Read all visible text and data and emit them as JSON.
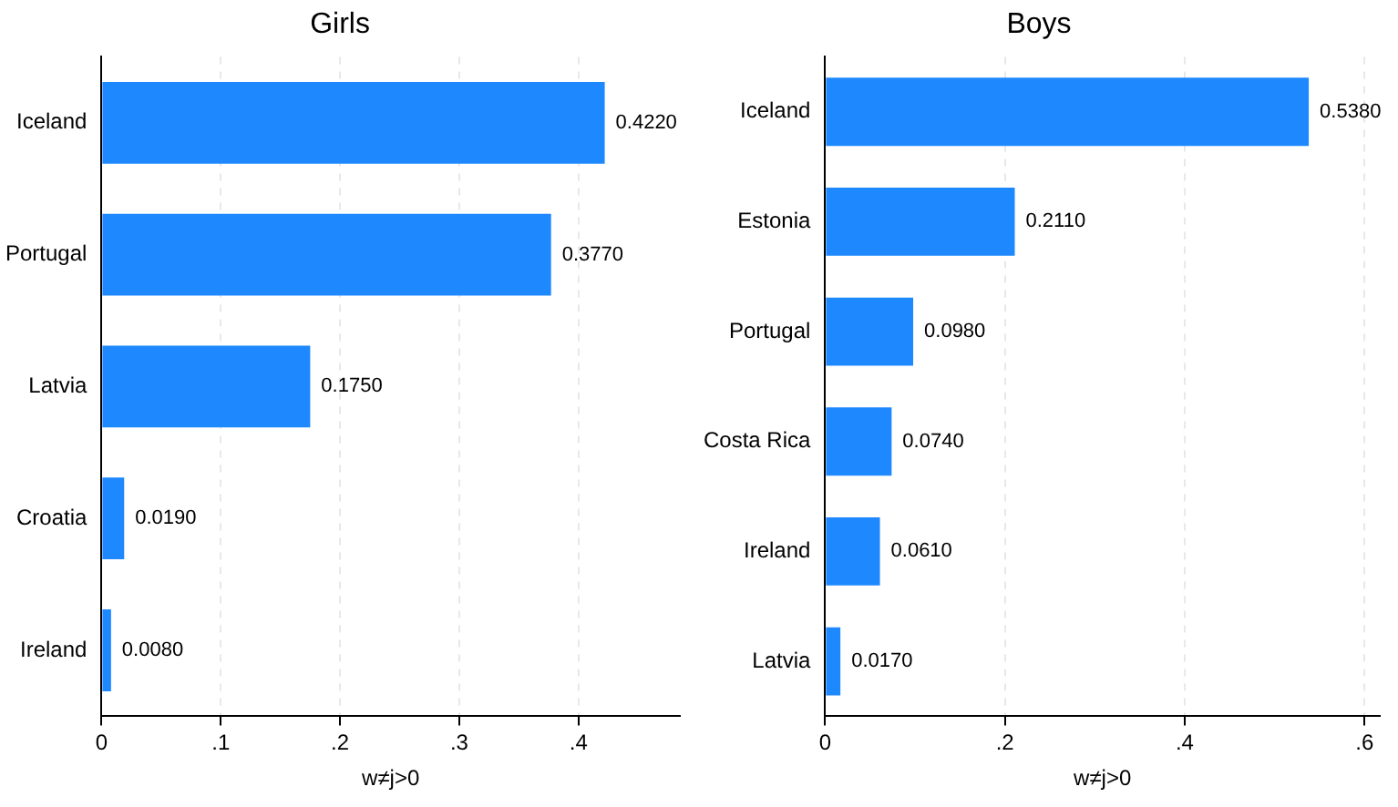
{
  "chart_data": [
    {
      "type": "bar",
      "orientation": "horizontal",
      "title": "Girls",
      "xlabel": "w≠j>0",
      "categories": [
        "Iceland",
        "Portugal",
        "Latvia",
        "Croatia",
        "Ireland"
      ],
      "values": [
        0.422,
        0.377,
        0.175,
        0.019,
        0.008
      ],
      "value_labels": [
        "0.4220",
        "0.3770",
        "0.1750",
        "0.0190",
        "0.0080"
      ],
      "color": "#1e88ff",
      "xlim": [
        0,
        0.485
      ],
      "xticks": [
        {
          "value": 0,
          "label": "0"
        },
        {
          "value": 0.1,
          "label": ".1"
        },
        {
          "value": 0.2,
          "label": ".2"
        },
        {
          "value": 0.3,
          "label": ".3"
        },
        {
          "value": 0.4,
          "label": ".4"
        }
      ],
      "grid": "x",
      "legend": false
    },
    {
      "type": "bar",
      "orientation": "horizontal",
      "title": "Boys",
      "xlabel": "w≠j>0",
      "categories": [
        "Iceland",
        "Estonia",
        "Portugal",
        "Costa Rica",
        "Ireland",
        "Latvia"
      ],
      "values": [
        0.538,
        0.211,
        0.098,
        0.074,
        0.061,
        0.017
      ],
      "value_labels": [
        "0.5380",
        "0.2110",
        "0.0980",
        "0.0740",
        "0.0610",
        "0.0170"
      ],
      "color": "#1e88ff",
      "xlim": [
        0,
        0.617
      ],
      "xticks": [
        {
          "value": 0,
          "label": "0"
        },
        {
          "value": 0.2,
          "label": ".2"
        },
        {
          "value": 0.4,
          "label": ".4"
        },
        {
          "value": 0.6,
          "label": ".6"
        }
      ],
      "grid": "x",
      "legend": false
    }
  ]
}
